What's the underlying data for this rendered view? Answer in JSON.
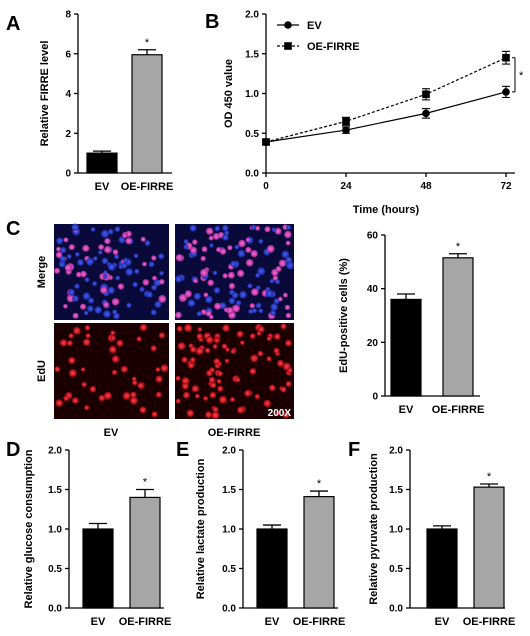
{
  "figure": {
    "panel_labels": [
      "A",
      "B",
      "C",
      "D",
      "E",
      "F"
    ],
    "microscopy": {
      "row_labels": [
        "Merge",
        "EdU"
      ],
      "column_labels": [
        "EV",
        "OE-FIRRE"
      ],
      "magnification": "200X",
      "colors": {
        "merge_background": "#0a0a3a",
        "nuclei": "#2b3fd6",
        "edu": "#e0203a",
        "edu_background": "#1a0000"
      }
    }
  },
  "chart_data": [
    {
      "panel": "A",
      "type": "bar",
      "categories": [
        "EV",
        "OE-FIRRE"
      ],
      "values": [
        1.0,
        5.95
      ],
      "errors": [
        0.1,
        0.25
      ],
      "ylabel": "Relative FIRRE level",
      "ylim": [
        0,
        8
      ],
      "yticks": [
        0,
        2,
        4,
        6,
        8
      ],
      "significance": [
        {
          "category": "OE-FIRRE",
          "mark": "*"
        }
      ],
      "colors": [
        "#000000",
        "#a6a6a6"
      ]
    },
    {
      "panel": "B",
      "type": "line",
      "x": [
        0,
        24,
        48,
        72
      ],
      "xticks": [
        0,
        24,
        48,
        72
      ],
      "xlabel": "Time (hours)",
      "ylabel": "OD 450 value",
      "ylim": [
        0,
        2.0
      ],
      "yticks": [
        "0.0",
        "0.5",
        "1.0",
        "1.5",
        "2.0"
      ],
      "legend_position": "top-left",
      "series": [
        {
          "name": "EV",
          "values": [
            0.39,
            0.54,
            0.75,
            1.02
          ],
          "errors": [
            0.03,
            0.04,
            0.06,
            0.07
          ],
          "marker": "circle",
          "dash": "solid"
        },
        {
          "name": "OE-FIRRE",
          "values": [
            0.39,
            0.65,
            0.99,
            1.45
          ],
          "errors": [
            0.03,
            0.05,
            0.07,
            0.08
          ],
          "marker": "square",
          "dash": "dashed"
        }
      ],
      "significance": [
        {
          "x": 72,
          "mark": "*"
        }
      ]
    },
    {
      "panel": "C",
      "type": "bar",
      "categories": [
        "EV",
        "OE-FIRRE"
      ],
      "values": [
        36.0,
        51.5
      ],
      "errors": [
        2.0,
        1.5
      ],
      "ylabel": "EdU-positive cells (%)",
      "ylim": [
        0,
        60
      ],
      "yticks": [
        0,
        20,
        40,
        60
      ],
      "significance": [
        {
          "category": "OE-FIRRE",
          "mark": "*"
        }
      ],
      "colors": [
        "#000000",
        "#a6a6a6"
      ]
    },
    {
      "panel": "D",
      "type": "bar",
      "categories": [
        "EV",
        "OE-FIRRE"
      ],
      "values": [
        1.0,
        1.4
      ],
      "errors": [
        0.07,
        0.1
      ],
      "ylabel": "Relative glucose consumption",
      "ylim": [
        0,
        2.0
      ],
      "yticks": [
        "0.0",
        "0.5",
        "1.0",
        "1.5",
        "2.0"
      ],
      "significance": [
        {
          "category": "OE-FIRRE",
          "mark": "*"
        }
      ],
      "colors": [
        "#000000",
        "#a6a6a6"
      ]
    },
    {
      "panel": "E",
      "type": "bar",
      "categories": [
        "EV",
        "OE-FIRRE"
      ],
      "values": [
        1.0,
        1.41
      ],
      "errors": [
        0.05,
        0.07
      ],
      "ylabel": "Relative lactate production",
      "ylim": [
        0,
        2.0
      ],
      "yticks": [
        "0.0",
        "0.5",
        "1.0",
        "1.5",
        "2.0"
      ],
      "significance": [
        {
          "category": "OE-FIRRE",
          "mark": "*"
        }
      ],
      "colors": [
        "#000000",
        "#a6a6a6"
      ]
    },
    {
      "panel": "F",
      "type": "bar",
      "categories": [
        "EV",
        "OE-FIRRE"
      ],
      "values": [
        1.0,
        1.53
      ],
      "errors": [
        0.04,
        0.04
      ],
      "ylabel": "Relative pyruvate production",
      "ylim": [
        0,
        2.0
      ],
      "yticks": [
        "0.0",
        "0.5",
        "1.0",
        "1.5",
        "2.0"
      ],
      "significance": [
        {
          "category": "OE-FIRRE",
          "mark": "*"
        }
      ],
      "colors": [
        "#000000",
        "#a6a6a6"
      ]
    }
  ]
}
